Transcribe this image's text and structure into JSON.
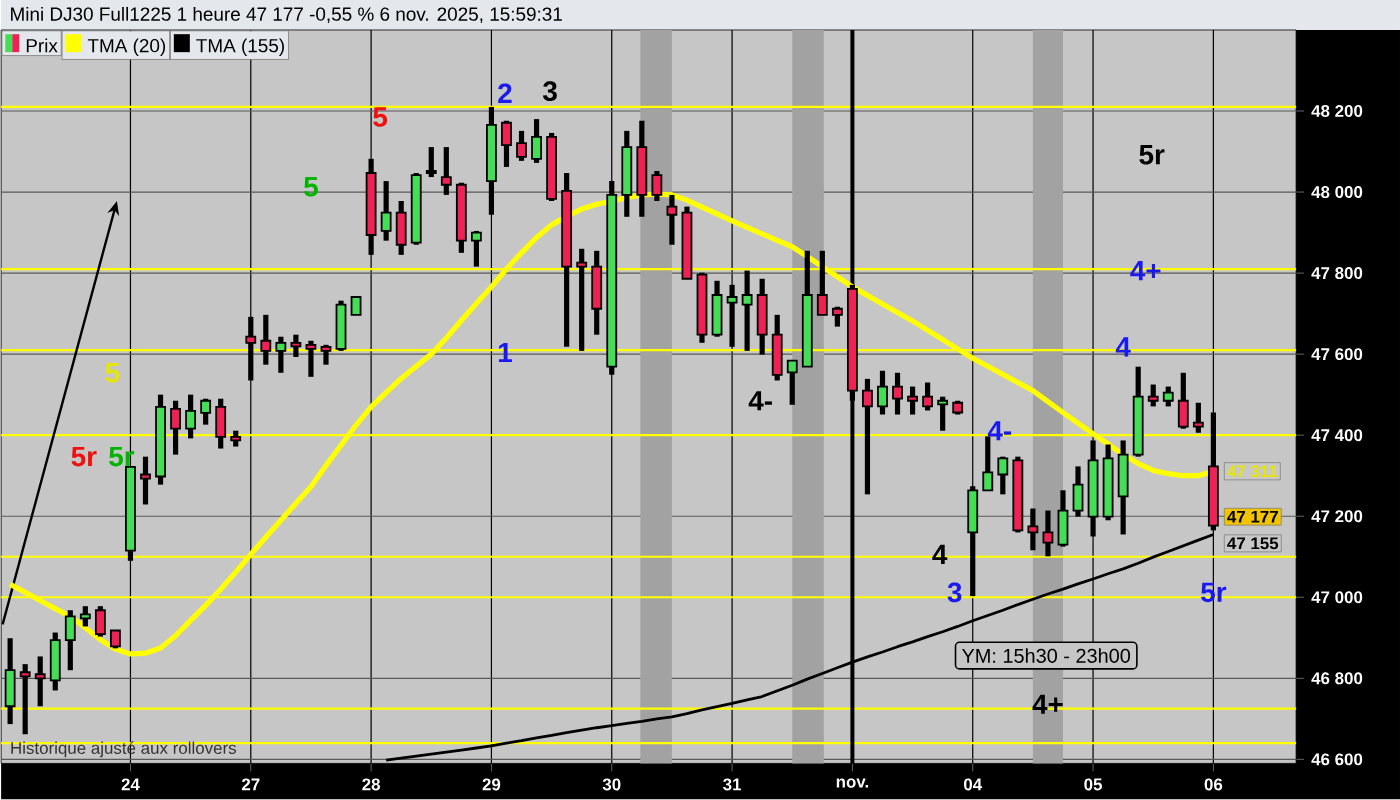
{
  "chart_data": {
    "type": "candlestick",
    "title": "Mini DJ30 Full1225 1 heure 47 177 -0,55 % 6 nov. 2025, 15:59:31",
    "categories": [
      null,
      null,
      null,
      null,
      null,
      null,
      null,
      null,
      "24",
      null,
      null,
      null,
      null,
      null,
      null,
      null,
      "27",
      null,
      null,
      null,
      null,
      null,
      null,
      null,
      "28",
      null,
      null,
      null,
      null,
      null,
      null,
      null,
      "29",
      null,
      null,
      null,
      null,
      null,
      null,
      null,
      "30",
      null,
      null,
      null,
      null,
      null,
      null,
      null,
      "31",
      null,
      null,
      null,
      null,
      null,
      null,
      null,
      "nov.",
      null,
      null,
      null,
      null,
      null,
      null,
      null,
      "04",
      null,
      null,
      null,
      null,
      null,
      null,
      null,
      "05",
      null,
      null,
      null,
      null,
      null,
      null,
      null,
      "06"
    ],
    "ylim": [
      46590,
      48400
    ],
    "yticks": [
      {
        "value": 46600,
        "label": "46 600"
      },
      {
        "value": 46800,
        "label": "46 800"
      },
      {
        "value": 47000,
        "label": "47 000"
      },
      {
        "value": 47200,
        "label": "47 200"
      },
      {
        "value": 47400,
        "label": "47 400"
      },
      {
        "value": 47600,
        "label": "47 600"
      },
      {
        "value": 47800,
        "label": "47 800"
      },
      {
        "value": 48000,
        "label": "48 000"
      },
      {
        "value": 48200,
        "label": "48 200"
      }
    ],
    "grid": true,
    "legend": "top left",
    "series": [
      {
        "type": "candlestick",
        "name": "Prix",
        "value_labels": [
          null,
          null,
          null,
          null,
          null,
          null,
          null,
          null,
          null,
          null,
          null,
          null,
          null,
          null,
          null,
          null,
          null,
          null,
          null,
          null,
          null,
          null,
          null,
          null,
          null,
          null,
          null,
          null,
          null,
          null,
          null,
          null,
          null,
          null,
          null,
          null,
          null,
          null,
          null,
          null,
          null,
          null,
          null,
          null,
          null,
          null,
          null,
          null,
          null,
          null,
          null,
          null,
          null,
          null,
          null,
          null,
          null,
          null,
          null,
          null,
          null,
          null,
          null,
          null,
          null,
          null,
          null,
          null,
          null,
          null,
          null,
          null,
          null,
          null,
          null,
          null,
          null,
          null,
          null,
          null,
          "47 177"
        ],
        "colors": [
          "#44dd55",
          "#ee2255",
          "#ee2255",
          "#44dd55",
          "#44dd55",
          "#44dd55",
          "#ee2255",
          "#ee2255",
          "#44dd55",
          "#ee2255",
          "#44dd55",
          "#ee2255",
          "#44dd55",
          "#44dd55",
          "#ee2255",
          "#ee2255",
          "#ee2255",
          "#ee2255",
          "#44dd55",
          "#ee2255",
          "#ee2255",
          "#ee2255",
          "#44dd55",
          "#44dd55",
          "#ee2255",
          "#44dd55",
          "#ee2255",
          "#44dd55",
          "#ee2255",
          "#ee2255",
          "#ee2255",
          "#44dd55",
          "#44dd55",
          "#ee2255",
          "#ee2255",
          "#44dd55",
          "#ee2255",
          "#ee2255",
          "#ee2255",
          "#ee2255",
          "#44dd55",
          "#44dd55",
          "#ee2255",
          "#ee2255",
          "#ee2255",
          "#ee2255",
          "#ee2255",
          "#44dd55",
          "#44dd55",
          "#44dd55",
          "#ee2255",
          "#ee2255",
          "#44dd55",
          "#44dd55",
          "#ee2255",
          "#ee2255",
          "#ee2255",
          "#ee2255",
          "#44dd55",
          "#ee2255",
          "#ee2255",
          "#ee2255",
          "#44dd55",
          "#ee2255",
          "#44dd55",
          "#44dd55",
          "#44dd55",
          "#ee2255",
          "#ee2255",
          "#ee2255",
          "#44dd55",
          "#44dd55",
          "#44dd55",
          "#44dd55",
          "#44dd55",
          "#44dd55",
          "#ee2255",
          "#44dd55",
          "#ee2255",
          "#ee2255",
          "#ee2255"
        ],
        "ohlc": [
          [
            46731,
            46899,
            46687,
            46820
          ],
          [
            46815,
            46835,
            46662,
            46805
          ],
          [
            46810,
            46854,
            46731,
            46800
          ],
          [
            46795,
            46913,
            46770,
            46894
          ],
          [
            46894,
            46968,
            46820,
            46953
          ],
          [
            46948,
            46978,
            46928,
            46958
          ],
          [
            46968,
            46978,
            46903,
            46909
          ],
          [
            46918,
            46918,
            46874,
            46879
          ],
          [
            47115,
            47322,
            47090,
            47322
          ],
          [
            47303,
            47347,
            47229,
            47293
          ],
          [
            47298,
            47500,
            47278,
            47470
          ],
          [
            47465,
            47485,
            47352,
            47416
          ],
          [
            47416,
            47500,
            47392,
            47460
          ],
          [
            47455,
            47490,
            47426,
            47485
          ],
          [
            47470,
            47490,
            47367,
            47396
          ],
          [
            47396,
            47411,
            47372,
            47387
          ],
          [
            47643,
            47692,
            47535,
            47628
          ],
          [
            47633,
            47697,
            47574,
            47608
          ],
          [
            47608,
            47643,
            47554,
            47628
          ],
          [
            47628,
            47648,
            47593,
            47619
          ],
          [
            47623,
            47633,
            47544,
            47613
          ],
          [
            47618,
            47623,
            47574,
            47608
          ],
          [
            47613,
            47732,
            47608,
            47722
          ],
          [
            47697,
            47741,
            47697,
            47741
          ],
          [
            48047,
            48082,
            47845,
            47894
          ],
          [
            47904,
            48027,
            47880,
            47949
          ],
          [
            47949,
            47978,
            47845,
            47870
          ],
          [
            47875,
            48047,
            47870,
            48042
          ],
          [
            48052,
            48111,
            48037,
            48047
          ],
          [
            48037,
            48111,
            47993,
            48018
          ],
          [
            48018,
            48023,
            47850,
            47880
          ],
          [
            47880,
            47904,
            47816,
            47900
          ],
          [
            48027,
            48210,
            47944,
            48166
          ],
          [
            48171,
            48176,
            48062,
            48116
          ],
          [
            48121,
            48151,
            48077,
            48087
          ],
          [
            48082,
            48180,
            48072,
            48136
          ],
          [
            48136,
            48146,
            47978,
            47983
          ],
          [
            48003,
            48047,
            47618,
            47816
          ],
          [
            47826,
            47860,
            47608,
            47816
          ],
          [
            47816,
            47855,
            47648,
            47712
          ],
          [
            47569,
            48027,
            47549,
            47993
          ],
          [
            47993,
            48151,
            47939,
            48111
          ],
          [
            48111,
            48176,
            47939,
            47993
          ],
          [
            48042,
            48052,
            47978,
            47993
          ],
          [
            47964,
            47993,
            47870,
            47944
          ],
          [
            47949,
            47964,
            47786,
            47786
          ],
          [
            47796,
            47801,
            47628,
            47648
          ],
          [
            47648,
            47781,
            47643,
            47746
          ],
          [
            47727,
            47771,
            47618,
            47741
          ],
          [
            47722,
            47806,
            47608,
            47746
          ],
          [
            47746,
            47786,
            47599,
            47648
          ],
          [
            47648,
            47697,
            47535,
            47549
          ],
          [
            47555,
            47584,
            47475,
            47584
          ],
          [
            47569,
            47855,
            47569,
            47746
          ],
          [
            47746,
            47855,
            47697,
            47697
          ],
          [
            47712,
            47717,
            47668,
            47697
          ],
          [
            47761,
            47771,
            47485,
            47510
          ],
          [
            47510,
            47539,
            47254,
            47471
          ],
          [
            47471,
            47559,
            47451,
            47520
          ],
          [
            47520,
            47554,
            47451,
            47490
          ],
          [
            47495,
            47520,
            47451,
            47485
          ],
          [
            47495,
            47530,
            47461,
            47471
          ],
          [
            47476,
            47495,
            47411,
            47485
          ],
          [
            47480,
            47485,
            47451,
            47456
          ],
          [
            47160,
            47274,
            47003,
            47264
          ],
          [
            47264,
            47397,
            47264,
            47308
          ],
          [
            47303,
            47347,
            47254,
            47343
          ],
          [
            47338,
            47347,
            47160,
            47165
          ],
          [
            47175,
            47219,
            47116,
            47160
          ],
          [
            47160,
            47214,
            47101,
            47135
          ],
          [
            47130,
            47264,
            47125,
            47214
          ],
          [
            47214,
            47323,
            47199,
            47278
          ],
          [
            47199,
            47387,
            47150,
            47338
          ],
          [
            47199,
            47377,
            47190,
            47343
          ],
          [
            47249,
            47387,
            47155,
            47352
          ],
          [
            47352,
            47569,
            47347,
            47495
          ],
          [
            47495,
            47525,
            47471,
            47485
          ],
          [
            47485,
            47520,
            47471,
            47505
          ],
          [
            47485,
            47554,
            47416,
            47421
          ],
          [
            47431,
            47480,
            47406,
            47421
          ],
          [
            47323,
            47456,
            47165,
            47177
          ]
        ]
      },
      {
        "type": "line",
        "name": "TMA (20)",
        "color": "#ffff00",
        "value_labels": [
          null,
          null,
          null,
          null,
          null,
          null,
          null,
          null,
          null,
          null,
          null,
          null,
          null,
          null,
          null,
          null,
          null,
          null,
          null,
          null,
          null,
          null,
          null,
          null,
          null,
          null,
          null,
          null,
          null,
          null,
          null,
          null,
          null,
          null,
          null,
          null,
          null,
          null,
          null,
          null,
          null,
          null,
          null,
          null,
          null,
          null,
          null,
          null,
          null,
          null,
          null,
          null,
          null,
          null,
          null,
          null,
          null,
          null,
          null,
          null,
          null,
          null,
          null,
          null,
          null,
          null,
          null,
          null,
          null,
          null,
          null,
          null,
          null,
          null,
          null,
          null,
          null,
          null,
          null,
          null,
          "47 311"
        ],
        "values": [
          47032,
          47012,
          46992,
          46972,
          46953,
          46925,
          46895,
          46872,
          46860,
          46862,
          46875,
          46905,
          46943,
          46980,
          47020,
          47062,
          47106,
          47148,
          47190,
          47232,
          47273,
          47325,
          47375,
          47425,
          47470,
          47505,
          47540,
          47570,
          47600,
          47640,
          47683,
          47725,
          47766,
          47810,
          47850,
          47888,
          47919,
          47940,
          47958,
          47970,
          47978,
          47986,
          47993,
          47995,
          47993,
          47980,
          47963,
          47946,
          47929,
          47913,
          47897,
          47881,
          47865,
          47841,
          47816,
          47791,
          47766,
          47745,
          47724,
          47703,
          47682,
          47659,
          47636,
          47613,
          47590,
          47570,
          47550,
          47530,
          47510,
          47483,
          47456,
          47430,
          47403,
          47378,
          47352,
          47330,
          47313,
          47305,
          47300,
          47300,
          47311
        ]
      },
      {
        "type": "line",
        "name": "TMA (155)",
        "color": "#000000",
        "value_labels": [
          null,
          null,
          null,
          null,
          null,
          null,
          null,
          null,
          null,
          null,
          null,
          null,
          null,
          null,
          null,
          null,
          null,
          null,
          null,
          null,
          null,
          null,
          null,
          null,
          null,
          null,
          null,
          null,
          null,
          null,
          null,
          null,
          null,
          null,
          null,
          null,
          null,
          null,
          null,
          null,
          null,
          null,
          null,
          null,
          null,
          null,
          null,
          null,
          null,
          null,
          null,
          null,
          null,
          null,
          null,
          null,
          null,
          null,
          null,
          null,
          null,
          null,
          null,
          null,
          null,
          null,
          null,
          null,
          null,
          null,
          null,
          null,
          null,
          null,
          null,
          null,
          null,
          null,
          null,
          null,
          "47 155"
        ],
        "values": [
          null,
          null,
          null,
          null,
          null,
          null,
          null,
          null,
          null,
          null,
          null,
          null,
          null,
          null,
          null,
          null,
          null,
          null,
          null,
          null,
          null,
          null,
          null,
          null,
          null,
          46598,
          46603,
          46608,
          46613,
          46618,
          46623,
          46628,
          46633,
          46640,
          46646,
          46653,
          46659,
          46666,
          46672,
          46678,
          46683,
          46689,
          46694,
          46700,
          46705,
          46713,
          46722,
          46730,
          46738,
          46747,
          46755,
          46769,
          46783,
          46798,
          46812,
          46826,
          46840,
          46853,
          46865,
          46878,
          46890,
          46903,
          46915,
          46928,
          46942,
          46955,
          46968,
          46982,
          46995,
          47008,
          47020,
          47033,
          47045,
          47058,
          47070,
          47084,
          47099,
          47113,
          47127,
          47141,
          47155
        ]
      }
    ],
    "ref_lines": [
      {
        "axis": "y",
        "value": 48210,
        "color": "#ffff00"
      },
      {
        "axis": "y",
        "value": 47810,
        "color": "#ffff00"
      },
      {
        "axis": "y",
        "value": 47610,
        "color": "#ffff00"
      },
      {
        "axis": "y",
        "value": 47400,
        "color": "#ffff00"
      },
      {
        "axis": "y",
        "value": 47100,
        "color": "#ffff00"
      },
      {
        "axis": "y",
        "value": 47000,
        "color": "#ffff00"
      },
      {
        "axis": "y",
        "value": 46725,
        "color": "#ffff00"
      },
      {
        "axis": "y",
        "value": 46640,
        "color": "#ffff00"
      },
      {
        "axis": "x",
        "value": "nov.",
        "color": "#000000"
      }
    ],
    "annotations": [
      "5",
      "5",
      "2",
      "3",
      "5",
      "1",
      "5r",
      "5r",
      "4-",
      "4-",
      "4",
      "4+",
      "5r",
      "4",
      "3",
      "5r",
      "4+",
      "YM: 15h30 - 23h00",
      "Historique ajusté aux rollovers"
    ]
  }
}
